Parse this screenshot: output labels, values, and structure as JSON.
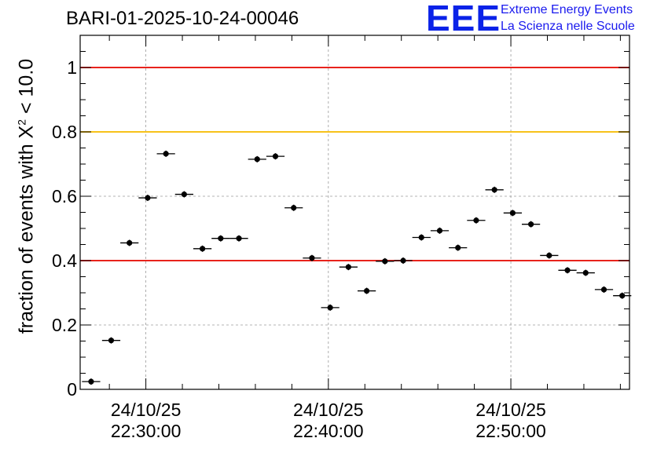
{
  "chart_data": {
    "type": "scatter",
    "title": "BARI-01-2025-10-24-00046",
    "ylabel_prefix": "fraction of events with ",
    "ylabel_symbol": "X",
    "ylabel_sup": "2",
    "ylabel_suffix": " < 10.0",
    "ylim": [
      0,
      1.1
    ],
    "yticks": [
      0,
      0.2,
      0.4,
      0.6,
      0.8,
      1
    ],
    "ytick_labels": [
      "0",
      "0.2",
      "0.4",
      "0.6",
      "0.8",
      "1"
    ],
    "x_unit": "minutes since 22:30:00",
    "xlim": [
      -3.6,
      26.5
    ],
    "xticks": [
      {
        "x": 0,
        "date": "24/10/25",
        "time": "22:30:00"
      },
      {
        "x": 10,
        "date": "24/10/25",
        "time": "22:40:00"
      },
      {
        "x": 20,
        "date": "24/10/25",
        "time": "22:50:00"
      }
    ],
    "bin_halfwidth": 0.5,
    "reference_lines": [
      {
        "y": 1.0,
        "color": "#e8231c"
      },
      {
        "y": 0.8,
        "color": "#f7c21a"
      },
      {
        "y": 0.4,
        "color": "#e8231c"
      }
    ],
    "series": [
      {
        "name": "fraction",
        "color": "#000000",
        "x": [
          -3,
          -1.9,
          -0.9,
          0.1,
          1.1,
          2.1,
          3.1,
          4.1,
          5.1,
          6.1,
          7.1,
          8.1,
          9.1,
          10.1,
          11.1,
          12.1,
          13.1,
          14.1,
          15.1,
          16.1,
          17.1,
          18.1,
          19.1,
          20.1,
          21.1,
          22.1,
          23.1,
          24.1,
          25.1,
          26.1
        ],
        "values": [
          0.024,
          0.152,
          0.455,
          0.595,
          0.732,
          0.606,
          0.437,
          0.469,
          0.469,
          0.715,
          0.724,
          0.564,
          0.408,
          0.254,
          0.38,
          0.306,
          0.398,
          0.4,
          0.472,
          0.493,
          0.44,
          0.525,
          0.62,
          0.548,
          0.513,
          0.416,
          0.37,
          0.362,
          0.31,
          0.291
        ]
      }
    ]
  },
  "logo": {
    "mark": "EEE",
    "line1": "Extreme Energy Events",
    "line2": "La Scienza nelle Scuole"
  }
}
